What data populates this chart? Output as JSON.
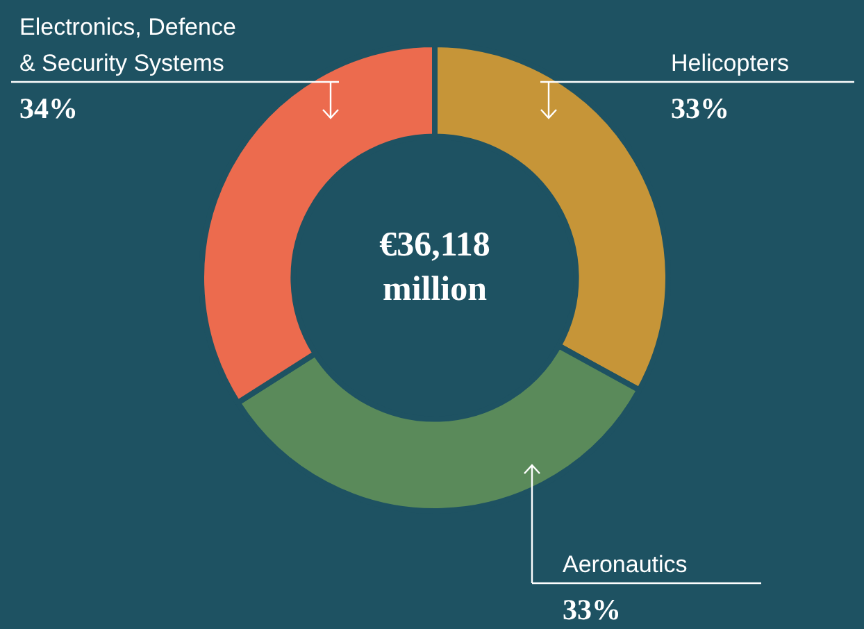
{
  "chart_data": {
    "type": "donut",
    "categories": [
      "Helicopters",
      "Aeronautics",
      "Electronics, Defence & Security Systems"
    ],
    "values": [
      33,
      33,
      34
    ],
    "value_labels": [
      "33%",
      "33%",
      "34%"
    ],
    "colors": [
      "#c69538",
      "#5a8a5a",
      "#ec6b4e"
    ],
    "annotations": [
      "€36,118 million"
    ],
    "legend": false
  }
}
